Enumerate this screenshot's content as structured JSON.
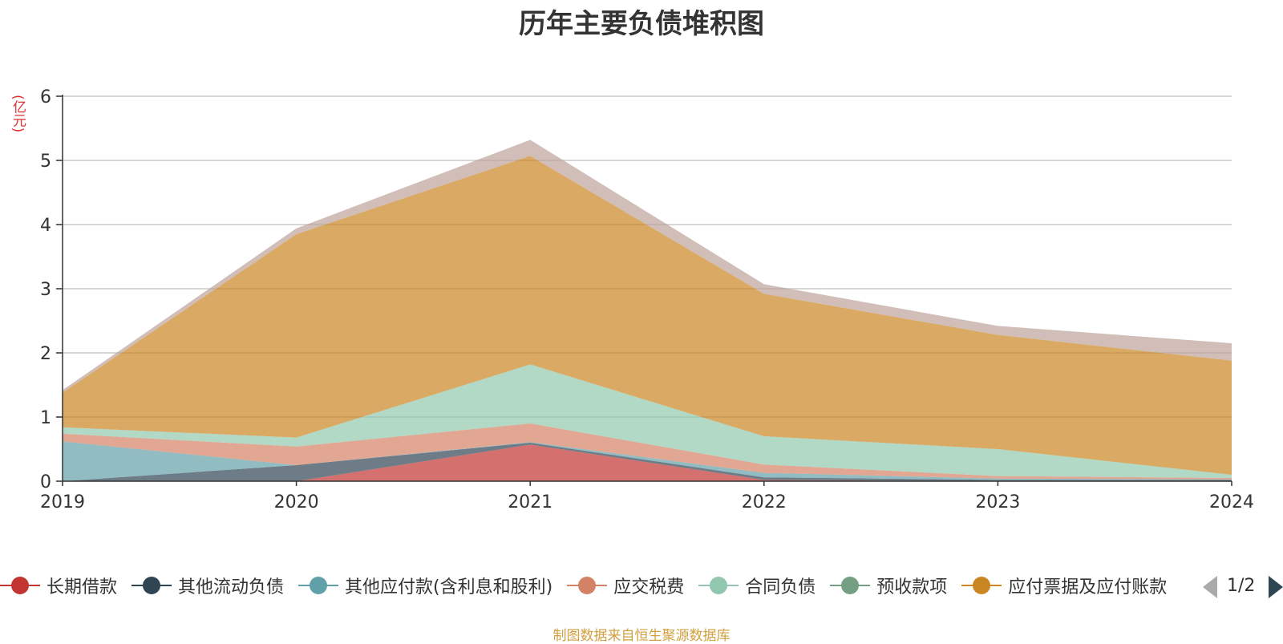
{
  "chart_data": {
    "type": "area",
    "stacked": true,
    "title": "历年主要负债堆积图",
    "unit_label": "(亿元)",
    "x": [
      "2019",
      "2020",
      "2021",
      "2022",
      "2023",
      "2024"
    ],
    "ylim": [
      0,
      6
    ],
    "yticks": [
      0,
      1,
      2,
      3,
      4,
      5,
      6
    ],
    "grid": true,
    "legend_position": "bottom",
    "series": [
      {
        "name": "长期借款",
        "color": "#c23531",
        "values": [
          0,
          0,
          0.57,
          0.02,
          0.0,
          0.0
        ]
      },
      {
        "name": "其他流动负债",
        "color": "#2f4554",
        "values": [
          0,
          0.25,
          0.03,
          0.04,
          0.02,
          0.02
        ]
      },
      {
        "name": "其他应付款(含利息和股利)",
        "color": "#61a0a8",
        "values": [
          0.62,
          0.0,
          0.01,
          0.07,
          0.02,
          0.01
        ]
      },
      {
        "name": "应交税费",
        "color": "#d48265",
        "values": [
          0.12,
          0.29,
          0.29,
          0.13,
          0.04,
          0.02
        ]
      },
      {
        "name": "合同负债",
        "color": "#91c7ae",
        "values": [
          0.1,
          0.14,
          0.92,
          0.44,
          0.42,
          0.05
        ]
      },
      {
        "name": "预收款项",
        "color": "#749f83",
        "values": [
          0,
          0,
          0,
          0,
          0,
          0
        ]
      },
      {
        "name": "应付票据及应付账款",
        "color": "#ca8622",
        "values": [
          0.54,
          3.17,
          3.25,
          2.22,
          1.78,
          1.78
        ]
      },
      {
        "name": "",
        "color": "#bda29a",
        "values": [
          0.04,
          0.09,
          0.25,
          0.15,
          0.14,
          0.27
        ]
      }
    ]
  },
  "legend": {
    "items": [
      {
        "label": "长期借款",
        "color": "#c23531"
      },
      {
        "label": "其他流动负债",
        "color": "#2f4554"
      },
      {
        "label": "其他应付款(含利息和股利)",
        "color": "#61a0a8"
      },
      {
        "label": "应交税费",
        "color": "#d48265"
      },
      {
        "label": "合同负债",
        "color": "#91c7ae"
      },
      {
        "label": "预收款项",
        "color": "#749f83"
      },
      {
        "label": "应付票据及应付账款",
        "color": "#ca8622"
      }
    ],
    "pager": "1/2"
  },
  "source_note": "制图数据来自恒生聚源数据库"
}
